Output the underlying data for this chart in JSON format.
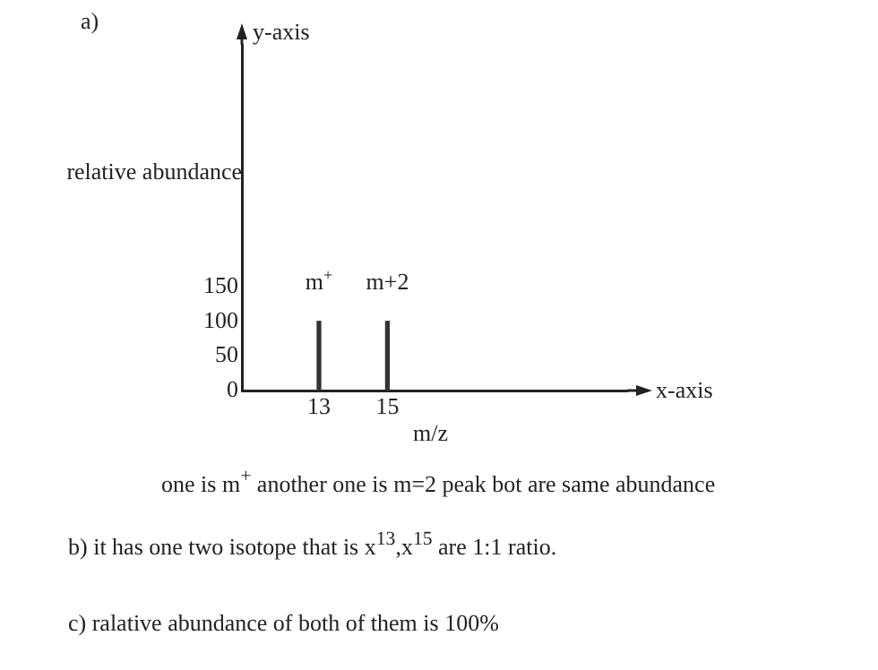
{
  "chart_data": {
    "type": "bar",
    "title": "a)",
    "xlabel": "m/z",
    "ylabel": "relative abundance",
    "x": [
      13,
      15
    ],
    "series": [
      {
        "color": "#333333",
        "values": [
          100,
          100
        ]
      }
    ],
    "xlim": [
      10.75,
      22
    ],
    "xticks": [
      13,
      15
    ],
    "ylim": [
      0,
      500
    ],
    "yticks": [
      0,
      50,
      100,
      150
    ],
    "legend": false,
    "annotations": [
      "y-axis",
      "x-axis",
      {
        "text": "m$^{+}$",
        "x": 13,
        "y": 100
      },
      {
        "text": "m+2",
        "x": 15,
        "y": 100
      },
      "one is m$^{+}$ another one is m=2 peak bot are same abundance",
      "b) it has one two isotope that is x$^{13}$,x$^{15}$ are 1:1 ratio.",
      "c) ralative abundance of both of them is 100%"
    ]
  }
}
